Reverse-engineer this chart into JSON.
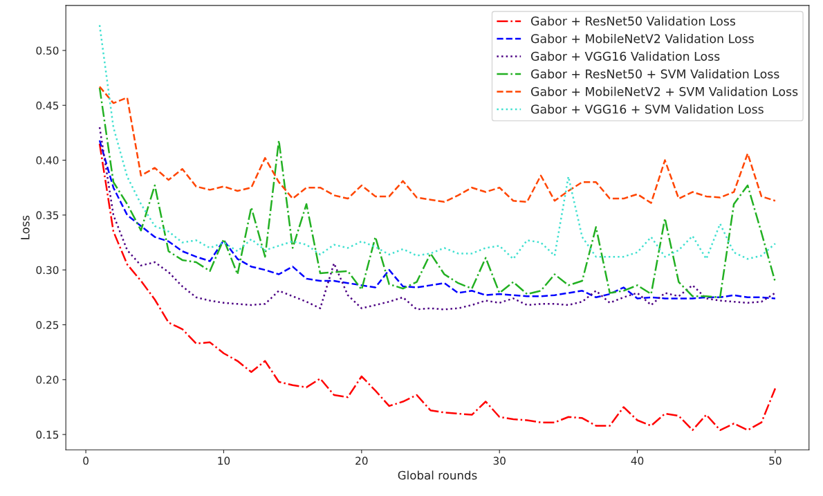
{
  "chart_data": {
    "type": "line",
    "xlabel": "Global rounds",
    "ylabel": "Loss",
    "x": [
      1,
      2,
      3,
      4,
      5,
      6,
      7,
      8,
      9,
      10,
      11,
      12,
      13,
      14,
      15,
      16,
      17,
      18,
      19,
      20,
      21,
      22,
      23,
      24,
      25,
      26,
      27,
      28,
      29,
      30,
      31,
      32,
      33,
      34,
      35,
      36,
      37,
      38,
      39,
      40,
      41,
      42,
      43,
      44,
      45,
      46,
      47,
      48,
      49,
      50
    ],
    "xlim": [
      -1.45,
      52.45
    ],
    "xticks": [
      0,
      10,
      20,
      30,
      40,
      50
    ],
    "ylim": [
      0.136,
      0.541
    ],
    "yticks": [
      {
        "value": 0.15,
        "label": "0.15"
      },
      {
        "value": 0.2,
        "label": "0.20"
      },
      {
        "value": 0.25,
        "label": "0.25"
      },
      {
        "value": 0.3,
        "label": "0.30"
      },
      {
        "value": 0.35,
        "label": "0.35"
      },
      {
        "value": 0.4,
        "label": "0.40"
      },
      {
        "value": 0.45,
        "label": "0.45"
      },
      {
        "value": 0.5,
        "label": "0.50"
      }
    ],
    "grid": false,
    "legend": "top right",
    "marker": "none",
    "series": [
      {
        "name": "Gabor + ResNet50 Validation Loss",
        "color": "#ff0000",
        "line_style": "dashdot",
        "values": [
          0.415,
          0.335,
          0.305,
          0.29,
          0.273,
          0.252,
          0.246,
          0.233,
          0.234,
          0.224,
          0.217,
          0.207,
          0.217,
          0.198,
          0.195,
          0.193,
          0.201,
          0.186,
          0.184,
          0.203,
          0.19,
          0.176,
          0.18,
          0.186,
          0.172,
          0.17,
          0.169,
          0.168,
          0.18,
          0.166,
          0.164,
          0.163,
          0.161,
          0.161,
          0.166,
          0.165,
          0.158,
          0.158,
          0.175,
          0.163,
          0.158,
          0.169,
          0.167,
          0.154,
          0.168,
          0.154,
          0.16,
          0.154,
          0.161,
          0.192
        ]
      },
      {
        "name": "Gabor + MobileNetV2 Validation Loss",
        "color": "#0000ff",
        "line_style": "dashed",
        "values": [
          0.418,
          0.375,
          0.35,
          0.34,
          0.33,
          0.326,
          0.317,
          0.312,
          0.308,
          0.327,
          0.31,
          0.303,
          0.3,
          0.296,
          0.303,
          0.292,
          0.29,
          0.29,
          0.288,
          0.286,
          0.284,
          0.3,
          0.285,
          0.284,
          0.286,
          0.288,
          0.279,
          0.281,
          0.277,
          0.278,
          0.277,
          0.276,
          0.276,
          0.277,
          0.279,
          0.281,
          0.275,
          0.278,
          0.284,
          0.274,
          0.275,
          0.274,
          0.274,
          0.274,
          0.275,
          0.275,
          0.277,
          0.275,
          0.275,
          0.274
        ]
      },
      {
        "name": "Gabor + VGG16 Validation Loss",
        "color": "#4b0082",
        "line_style": "dotted",
        "values": [
          0.43,
          0.35,
          0.318,
          0.304,
          0.307,
          0.298,
          0.285,
          0.275,
          0.272,
          0.27,
          0.269,
          0.268,
          0.269,
          0.281,
          0.276,
          0.271,
          0.265,
          0.306,
          0.277,
          0.265,
          0.268,
          0.271,
          0.275,
          0.264,
          0.265,
          0.264,
          0.265,
          0.268,
          0.272,
          0.27,
          0.274,
          0.268,
          0.269,
          0.269,
          0.268,
          0.271,
          0.281,
          0.27,
          0.275,
          0.279,
          0.268,
          0.279,
          0.276,
          0.286,
          0.274,
          0.272,
          0.271,
          0.27,
          0.271,
          0.279
        ]
      },
      {
        "name": "Gabor + ResNet50 + SVM Validation Loss",
        "color": "#22b022",
        "line_style": "dashdot",
        "values": [
          0.466,
          0.38,
          0.36,
          0.336,
          0.377,
          0.317,
          0.309,
          0.307,
          0.299,
          0.328,
          0.296,
          0.357,
          0.312,
          0.418,
          0.32,
          0.36,
          0.297,
          0.298,
          0.299,
          0.282,
          0.33,
          0.287,
          0.283,
          0.289,
          0.315,
          0.296,
          0.288,
          0.283,
          0.311,
          0.279,
          0.289,
          0.278,
          0.281,
          0.296,
          0.286,
          0.29,
          0.339,
          0.279,
          0.281,
          0.286,
          0.278,
          0.347,
          0.289,
          0.276,
          0.276,
          0.275,
          0.36,
          0.377,
          0.334,
          0.289
        ]
      },
      {
        "name": "Gabor + MobileNetV2 + SVM Validation Loss",
        "color": "#ff4500",
        "line_style": "dashed",
        "values": [
          0.467,
          0.452,
          0.457,
          0.386,
          0.393,
          0.382,
          0.392,
          0.376,
          0.373,
          0.376,
          0.372,
          0.375,
          0.402,
          0.38,
          0.365,
          0.375,
          0.375,
          0.368,
          0.365,
          0.377,
          0.367,
          0.367,
          0.381,
          0.366,
          0.364,
          0.362,
          0.368,
          0.375,
          0.371,
          0.375,
          0.363,
          0.362,
          0.386,
          0.363,
          0.372,
          0.38,
          0.38,
          0.365,
          0.365,
          0.369,
          0.361,
          0.4,
          0.365,
          0.371,
          0.367,
          0.366,
          0.371,
          0.406,
          0.367,
          0.363
        ]
      },
      {
        "name": "Gabor + VGG16 + SVM Validation Loss",
        "color": "#40e0d0",
        "line_style": "dotted",
        "values": [
          0.523,
          0.43,
          0.385,
          0.36,
          0.34,
          0.335,
          0.325,
          0.327,
          0.32,
          0.325,
          0.317,
          0.328,
          0.318,
          0.322,
          0.326,
          0.323,
          0.314,
          0.323,
          0.32,
          0.326,
          0.321,
          0.314,
          0.319,
          0.313,
          0.315,
          0.32,
          0.315,
          0.315,
          0.32,
          0.322,
          0.31,
          0.327,
          0.325,
          0.313,
          0.385,
          0.33,
          0.312,
          0.312,
          0.312,
          0.316,
          0.33,
          0.312,
          0.318,
          0.331,
          0.31,
          0.342,
          0.316,
          0.31,
          0.313,
          0.324
        ]
      }
    ]
  }
}
